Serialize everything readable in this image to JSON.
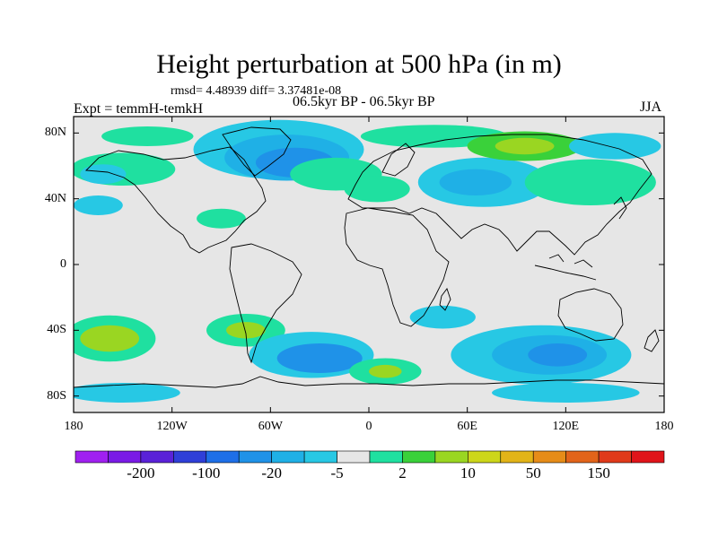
{
  "title": "Height perturbation at 500 hPa (in m)",
  "stats": "rmsd= 4.48939 diff= 3.37481e-08",
  "experiment": "Expt = temmH-temkH",
  "period": "06.5kyr BP - 06.5kyr BP",
  "season": "JJA",
  "map": {
    "projection": "cylindrical equidistant",
    "background_color": "#e6e6e6",
    "coastline_color": "#000000",
    "lat_range": [
      -90,
      90
    ],
    "lon_range": [
      -180,
      180
    ]
  },
  "lat_axis": {
    "ticks": [
      {
        "value": 80,
        "label": "80N"
      },
      {
        "value": 40,
        "label": "40N"
      },
      {
        "value": 0,
        "label": "0"
      },
      {
        "value": -40,
        "label": "40S"
      },
      {
        "value": -80,
        "label": "80S"
      }
    ]
  },
  "lon_axis": {
    "ticks": [
      {
        "value": -180,
        "label": "180"
      },
      {
        "value": -120,
        "label": "120W"
      },
      {
        "value": -60,
        "label": "60W"
      },
      {
        "value": 0,
        "label": "0"
      },
      {
        "value": 60,
        "label": "60E"
      },
      {
        "value": 120,
        "label": "120E"
      },
      {
        "value": 180,
        "label": "180"
      }
    ]
  },
  "colorbar": {
    "colors": [
      "#a020f0",
      "#7a1be6",
      "#5a22d8",
      "#2f3fd8",
      "#1e6fe8",
      "#1f92e8",
      "#1fb0e6",
      "#27c8e4",
      "#e6e6e6",
      "#1fe0a0",
      "#3ad13a",
      "#9ad622",
      "#cdd61a",
      "#e2b418",
      "#e68c18",
      "#e2641a",
      "#e03a1a",
      "#e0141a"
    ],
    "labels": [
      {
        "after_box": 1,
        "text": "-200"
      },
      {
        "after_box": 3,
        "text": "-100"
      },
      {
        "after_box": 5,
        "text": "-20"
      },
      {
        "after_box": 7,
        "text": "-5"
      },
      {
        "after_box": 9,
        "text": "2"
      },
      {
        "after_box": 11,
        "text": "10"
      },
      {
        "after_box": 13,
        "text": "50"
      },
      {
        "after_box": 15,
        "text": "150"
      }
    ]
  },
  "anomaly_regions": [
    {
      "lon": -135,
      "lat": 78,
      "rlon": 28,
      "rlat": 6,
      "color": "#1fe0a0"
    },
    {
      "lon": -150,
      "lat": 58,
      "rlon": 32,
      "rlat": 10,
      "color": "#1fe0a0"
    },
    {
      "lon": -162,
      "lat": 55,
      "rlon": 14,
      "rlat": 6,
      "color": "#27c8e4"
    },
    {
      "lon": -55,
      "lat": 70,
      "rlon": 52,
      "rlat": 18,
      "color": "#27c8e4"
    },
    {
      "lon": -50,
      "lat": 65,
      "rlon": 38,
      "rlat": 14,
      "color": "#1fb0e6"
    },
    {
      "lon": -45,
      "lat": 62,
      "rlon": 24,
      "rlat": 9,
      "color": "#1f92e8"
    },
    {
      "lon": -20,
      "lat": 55,
      "rlon": 28,
      "rlat": 10,
      "color": "#1fe0a0"
    },
    {
      "lon": 5,
      "lat": 46,
      "rlon": 20,
      "rlat": 8,
      "color": "#1fe0a0"
    },
    {
      "lon": 40,
      "lat": 78,
      "rlon": 45,
      "rlat": 7,
      "color": "#1fe0a0"
    },
    {
      "lon": 70,
      "lat": 50,
      "rlon": 40,
      "rlat": 15,
      "color": "#27c8e4"
    },
    {
      "lon": 65,
      "lat": 50,
      "rlon": 22,
      "rlat": 8,
      "color": "#1fb0e6"
    },
    {
      "lon": 95,
      "lat": 72,
      "rlon": 35,
      "rlat": 9,
      "color": "#3ad13a"
    },
    {
      "lon": 95,
      "lat": 72,
      "rlon": 18,
      "rlat": 5,
      "color": "#9ad622"
    },
    {
      "lon": 135,
      "lat": 50,
      "rlon": 40,
      "rlat": 14,
      "color": "#1fe0a0"
    },
    {
      "lon": 150,
      "lat": 72,
      "rlon": 28,
      "rlat": 8,
      "color": "#27c8e4"
    },
    {
      "lon": -165,
      "lat": 36,
      "rlon": 15,
      "rlat": 6,
      "color": "#27c8e4"
    },
    {
      "lon": -90,
      "lat": 28,
      "rlon": 15,
      "rlat": 6,
      "color": "#1fe0a0"
    },
    {
      "lon": -158,
      "lat": -45,
      "rlon": 28,
      "rlat": 14,
      "color": "#1fe0a0"
    },
    {
      "lon": -158,
      "lat": -45,
      "rlon": 18,
      "rlat": 8,
      "color": "#9ad622"
    },
    {
      "lon": -75,
      "lat": -40,
      "rlon": 24,
      "rlat": 10,
      "color": "#1fe0a0"
    },
    {
      "lon": -75,
      "lat": -40,
      "rlon": 12,
      "rlat": 5,
      "color": "#9ad622"
    },
    {
      "lon": -35,
      "lat": -55,
      "rlon": 38,
      "rlat": 14,
      "color": "#27c8e4"
    },
    {
      "lon": -30,
      "lat": -57,
      "rlon": 26,
      "rlat": 9,
      "color": "#1f92e8"
    },
    {
      "lon": 10,
      "lat": -65,
      "rlon": 22,
      "rlat": 8,
      "color": "#1fe0a0"
    },
    {
      "lon": 10,
      "lat": -65,
      "rlon": 10,
      "rlat": 4,
      "color": "#9ad622"
    },
    {
      "lon": 45,
      "lat": -32,
      "rlon": 20,
      "rlat": 7,
      "color": "#27c8e4"
    },
    {
      "lon": 105,
      "lat": -55,
      "rlon": 55,
      "rlat": 18,
      "color": "#27c8e4"
    },
    {
      "lon": 110,
      "lat": -55,
      "rlon": 35,
      "rlat": 12,
      "color": "#1fb0e6"
    },
    {
      "lon": 115,
      "lat": -55,
      "rlon": 18,
      "rlat": 7,
      "color": "#1f92e8"
    },
    {
      "lon": -150,
      "lat": -78,
      "rlon": 35,
      "rlat": 6,
      "color": "#27c8e4"
    },
    {
      "lon": 120,
      "lat": -78,
      "rlon": 45,
      "rlat": 6,
      "color": "#27c8e4"
    }
  ]
}
